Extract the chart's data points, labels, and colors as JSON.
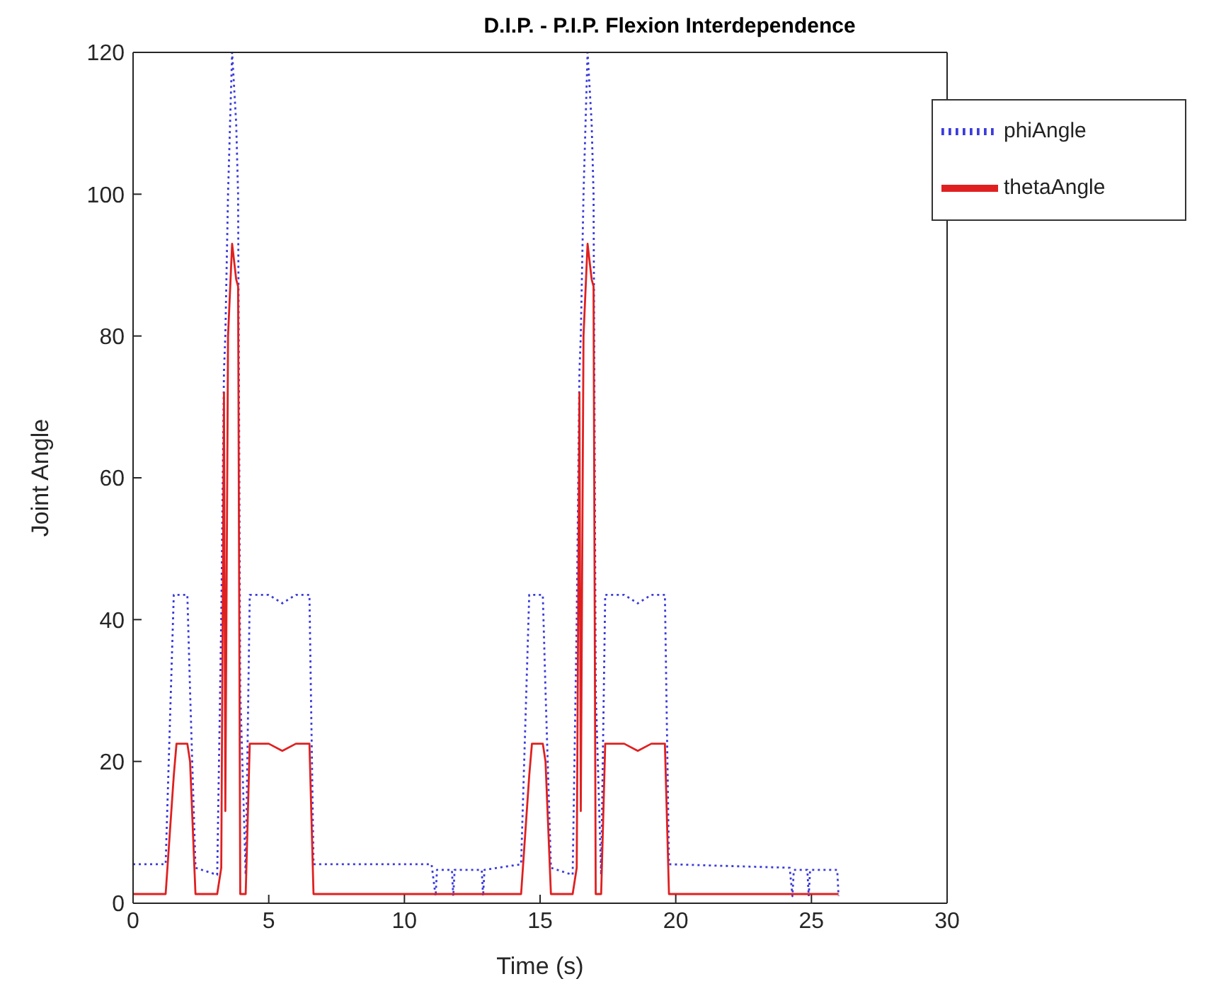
{
  "chart_data": {
    "type": "line",
    "title": "D.I.P. - P.I.P. Flexion Interdependence",
    "xlabel": "Time (s)",
    "ylabel": "Joint Angle",
    "xlim": [
      0,
      30
    ],
    "xticks": [
      0,
      5,
      10,
      15,
      20,
      25,
      30
    ],
    "ylim": [
      0,
      120
    ],
    "yticks": [
      0,
      20,
      40,
      60,
      80,
      100,
      120
    ],
    "legend": "top right",
    "series": [
      {
        "name": "phiAngle",
        "color": "#3b3bdd",
        "line_style": "dotted",
        "x": [
          0,
          1.2,
          1.5,
          1.6,
          2.0,
          2.1,
          2.3,
          3.1,
          3.25,
          3.35,
          3.4,
          3.5,
          3.65,
          3.8,
          3.87,
          3.95,
          4.15,
          4.3,
          5.0,
          5.5,
          6.0,
          6.5,
          6.65,
          11.0,
          11.15,
          11.2,
          11.75,
          11.8,
          11.85,
          12.85,
          12.9,
          12.95,
          14.3,
          14.6,
          14.7,
          15.1,
          15.2,
          15.4,
          16.2,
          16.35,
          16.45,
          16.5,
          16.6,
          16.75,
          16.9,
          16.97,
          17.05,
          17.25,
          17.4,
          18.1,
          18.6,
          19.1,
          19.6,
          19.75,
          24.2,
          24.3,
          24.35,
          24.85,
          24.9,
          24.95,
          25.95,
          26.0
        ],
        "values": [
          5.5,
          5.5,
          43.5,
          43.5,
          43.5,
          30,
          5,
          4,
          40,
          75,
          80,
          100,
          120,
          110,
          100,
          30,
          4,
          43.5,
          43.5,
          42.3,
          43.5,
          43.5,
          5.5,
          5.5,
          1,
          4.7,
          4.7,
          1,
          4.7,
          4.7,
          1,
          4.7,
          5.5,
          43.5,
          43.5,
          43.5,
          30,
          5,
          4,
          40,
          75,
          80,
          100,
          120,
          110,
          100,
          30,
          4,
          43.5,
          43.5,
          42.3,
          43.5,
          43.5,
          5.5,
          5,
          1,
          4.7,
          4.7,
          1,
          4.7,
          4.7,
          1
        ]
      },
      {
        "name": "thetaAngle",
        "color": "#e02020",
        "line_style": "solid",
        "x": [
          0,
          1.2,
          1.5,
          1.6,
          2.0,
          2.1,
          2.3,
          3.1,
          3.25,
          3.35,
          3.4,
          3.5,
          3.65,
          3.8,
          3.87,
          3.95,
          4.15,
          4.3,
          5.0,
          5.5,
          6.0,
          6.5,
          6.65,
          11.15,
          12.9,
          14.3,
          14.6,
          14.7,
          15.1,
          15.2,
          15.4,
          16.2,
          16.35,
          16.45,
          16.5,
          16.6,
          16.75,
          16.9,
          16.97,
          17.05,
          17.25,
          17.4,
          18.1,
          18.6,
          19.1,
          19.6,
          19.75,
          24.3,
          26.0
        ],
        "values": [
          1.3,
          1.3,
          18,
          22.5,
          22.5,
          20,
          1.3,
          1.3,
          5,
          72,
          13,
          80,
          93,
          88,
          87,
          1.3,
          1.3,
          22.5,
          22.5,
          21.5,
          22.5,
          22.5,
          1.3,
          1.3,
          1.3,
          1.3,
          18,
          22.5,
          22.5,
          20,
          1.3,
          1.3,
          5,
          72,
          13,
          80,
          93,
          88,
          87,
          1.3,
          1.3,
          22.5,
          22.5,
          21.5,
          22.5,
          22.5,
          1.3,
          1.3,
          1.3
        ]
      }
    ]
  }
}
